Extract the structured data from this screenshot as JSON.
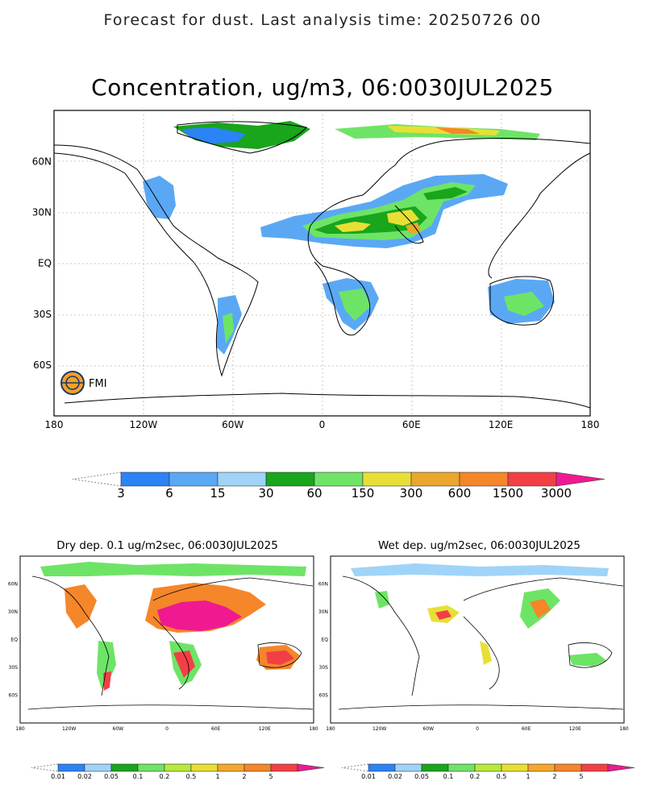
{
  "header": "Forecast for dust. Last analysis time: 20250726 00",
  "main": {
    "title": "Concentration, ug/m3, 06:0030JUL2025",
    "logo_text": "FMI",
    "lat_labels": [
      "60N",
      "30N",
      "EQ",
      "30S",
      "60S"
    ],
    "lon_labels": [
      "180",
      "120W",
      "60W",
      "0",
      "60E",
      "120E",
      "180"
    ],
    "colorbar": {
      "labels": [
        "3",
        "6",
        "15",
        "30",
        "60",
        "150",
        "300",
        "600",
        "1500",
        "3000"
      ],
      "colors": [
        "#2b83f6",
        "#5aa8f4",
        "#9fd4f8",
        "#19a51c",
        "#6ee466",
        "#e8df36",
        "#e9a72c",
        "#f5862a",
        "#f23f46",
        "#f01991"
      ]
    }
  },
  "dry": {
    "title": "Dry dep. 0.1 ug/m2sec, 06:0030JUL2025",
    "lat_labels": [
      "60N",
      "30N",
      "EQ",
      "30S",
      "60S"
    ],
    "lon_labels": [
      "180",
      "120W",
      "60W",
      "0",
      "60E",
      "120E",
      "180"
    ],
    "colorbar": {
      "labels": [
        "0.01",
        "0.02",
        "0.05",
        "0.1",
        "0.2",
        "0.5",
        "1",
        "2",
        "5"
      ],
      "colors": [
        "#2b83f6",
        "#9fd4f8",
        "#19a51c",
        "#6ee466",
        "#b7ea3a",
        "#e8df36",
        "#f5a82a",
        "#f5862a",
        "#f23f46",
        "#f01991"
      ]
    }
  },
  "wet": {
    "title": "Wet dep. ug/m2sec, 06:0030JUL2025",
    "lat_labels": [
      "60N",
      "30N",
      "EQ",
      "30S",
      "60S"
    ],
    "lon_labels": [
      "180",
      "120W",
      "60W",
      "0",
      "60E",
      "120E",
      "180"
    ],
    "colorbar": {
      "labels": [
        "0.01",
        "0.02",
        "0.05",
        "0.1",
        "0.2",
        "0.5",
        "1",
        "2",
        "5"
      ],
      "colors": [
        "#2b83f6",
        "#9fd4f8",
        "#19a51c",
        "#6ee466",
        "#b7ea3a",
        "#e8df36",
        "#f5a82a",
        "#f5862a",
        "#f23f46",
        "#f01991"
      ]
    }
  }
}
